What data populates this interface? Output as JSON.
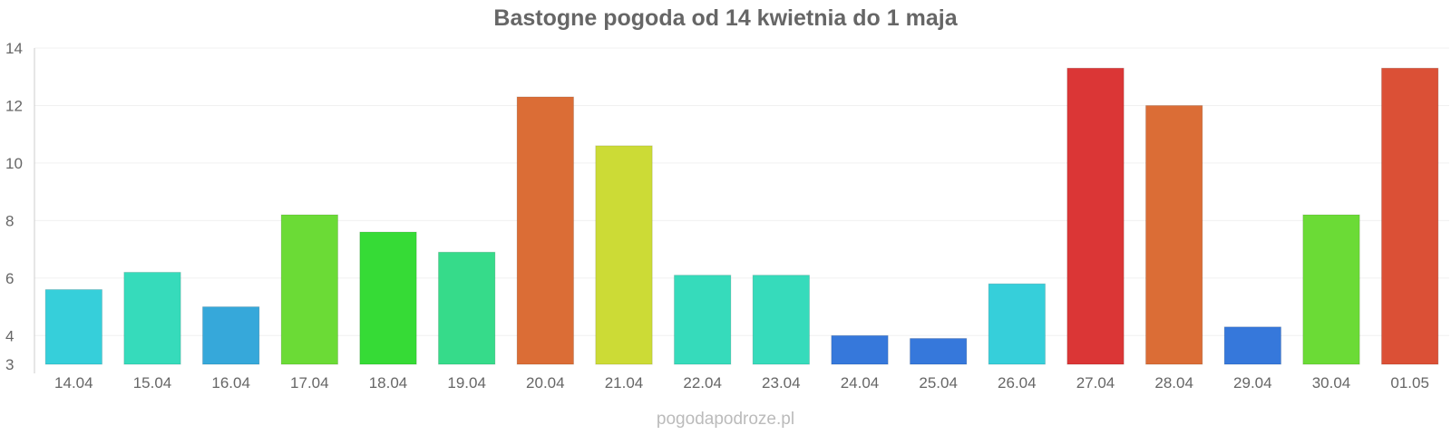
{
  "chart_data": {
    "type": "bar",
    "title": "Bastogne pogoda od 14 kwietnia do 1 maja",
    "xlabel": "",
    "ylabel": "",
    "categories": [
      "14.04",
      "15.04",
      "16.04",
      "17.04",
      "18.04",
      "19.04",
      "20.04",
      "21.04",
      "22.04",
      "23.04",
      "24.04",
      "25.04",
      "26.04",
      "27.04",
      "28.04",
      "29.04",
      "30.04",
      "01.05"
    ],
    "values": [
      5.6,
      6.2,
      5.0,
      8.2,
      7.6,
      6.9,
      12.3,
      10.6,
      6.1,
      6.1,
      4.0,
      3.9,
      5.8,
      13.3,
      12.0,
      4.3,
      8.2,
      13.3
    ],
    "colors": [
      "#36cfda",
      "#36dbbb",
      "#36a8da",
      "#6bdb36",
      "#36db36",
      "#36db8a",
      "#db6d36",
      "#ccdb36",
      "#36dbbb",
      "#36dbbb",
      "#3678db",
      "#3678db",
      "#36cfda",
      "#db3636",
      "#db6d36",
      "#3678db",
      "#6bdb36",
      "#db5036"
    ],
    "yticks": [
      3,
      4,
      6,
      8,
      10,
      12,
      14
    ],
    "ylim": [
      3,
      14
    ],
    "grid": true,
    "legend": "none"
  },
  "watermark": "pogodapodroze.pl"
}
